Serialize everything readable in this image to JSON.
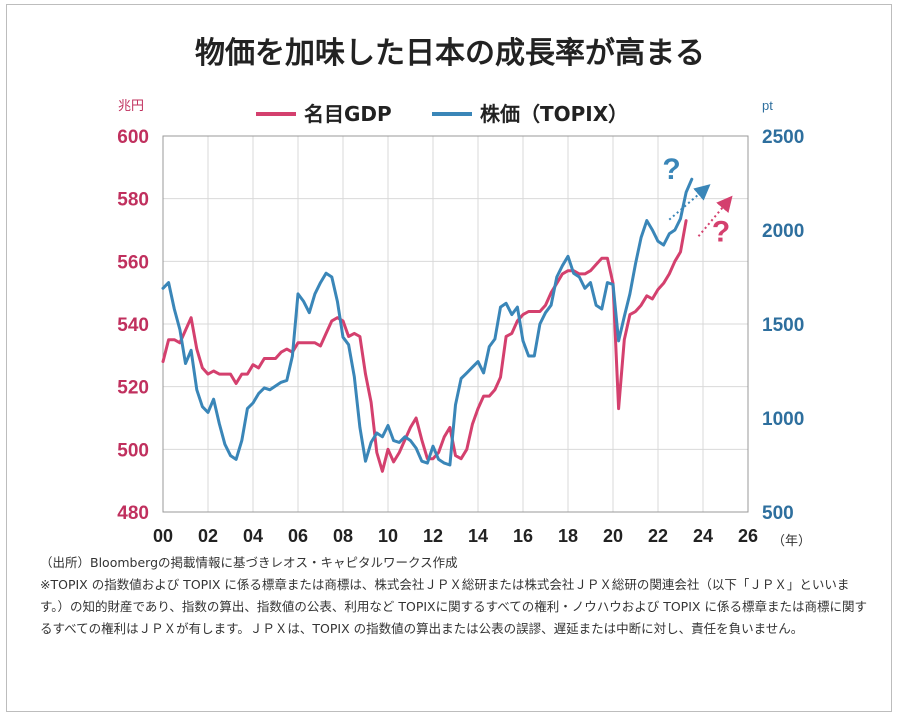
{
  "title": "物価を加味した日本の成長率が高まる",
  "footer": {
    "source": "（出所）Bloombergの掲載情報に基づきレオス・キャピタルワークス作成",
    "note": "※TOPIX の指数値および TOPIX に係る標章または商標は、株式会社ＪＰＸ総研または株式会社ＪＰＸ総研の関連会社（以下「ＪＰＸ」といいます。）の知的財産であり、指数の算出、指数値の公表、利用など TOPIXに関するすべての権利・ノウハウおよび TOPIX に係る標章または商標に関するすべての権利はＪＰＸが有します。ＪＰＸは、TOPIX の指数値の算出または公表の誤謬、遅延または中断に対し、責任を負いません。"
  },
  "chart_data": {
    "type": "line",
    "title": "物価を加味した日本の成長率が高まる",
    "xlabel": "（年）",
    "ylabel_left": "兆円",
    "ylabel_right": "pt",
    "x_tick_labels": [
      "00",
      "02",
      "04",
      "06",
      "08",
      "10",
      "12",
      "14",
      "16",
      "18",
      "20",
      "22",
      "24",
      "26"
    ],
    "xlim": [
      2000,
      2026
    ],
    "ylim_left": [
      480,
      600
    ],
    "yticks_left": [
      480,
      500,
      520,
      540,
      560,
      580,
      600
    ],
    "ylim_right": [
      500,
      2500
    ],
    "yticks_right": [
      500,
      1000,
      1500,
      2000,
      2500
    ],
    "legend": [
      "名目GDP",
      "株価（TOPIX）"
    ],
    "legend_position": "top-center",
    "colors": {
      "gdp": "#d4406e",
      "topix": "#3a86b8",
      "axis_left": "#c0305e",
      "axis_right": "#2e6f9e",
      "grid": "#d9d9d9"
    },
    "annotations": [
      {
        "text": "?",
        "color": "#3a86b8",
        "at": [
          2022.6,
          2270
        ]
      },
      {
        "text": "?",
        "color": "#d4406e",
        "at": [
          2024.8,
          1940
        ]
      }
    ],
    "arrows": [
      {
        "series": "topix",
        "from": [
          2022.5,
          2055
        ],
        "to": [
          2024.2,
          2230
        ]
      },
      {
        "series": "gdp",
        "from": [
          2023.8,
          568
        ],
        "to": [
          2025.2,
          580
        ]
      }
    ],
    "series": [
      {
        "name": "名目GDP",
        "axis": "left",
        "x": [
          2000.0,
          2000.25,
          2000.5,
          2000.75,
          2001.0,
          2001.25,
          2001.5,
          2001.75,
          2002.0,
          2002.25,
          2002.5,
          2002.75,
          2003.0,
          2003.25,
          2003.5,
          2003.75,
          2004.0,
          2004.25,
          2004.5,
          2004.75,
          2005.0,
          2005.25,
          2005.5,
          2005.75,
          2006.0,
          2006.25,
          2006.5,
          2006.75,
          2007.0,
          2007.25,
          2007.5,
          2007.75,
          2008.0,
          2008.25,
          2008.5,
          2008.75,
          2009.0,
          2009.25,
          2009.5,
          2009.75,
          2010.0,
          2010.25,
          2010.5,
          2010.75,
          2011.0,
          2011.25,
          2011.5,
          2011.75,
          2012.0,
          2012.25,
          2012.5,
          2012.75,
          2013.0,
          2013.25,
          2013.5,
          2013.75,
          2014.0,
          2014.25,
          2014.5,
          2014.75,
          2015.0,
          2015.25,
          2015.5,
          2015.75,
          2016.0,
          2016.25,
          2016.5,
          2016.75,
          2017.0,
          2017.25,
          2017.5,
          2017.75,
          2018.0,
          2018.25,
          2018.5,
          2018.75,
          2019.0,
          2019.25,
          2019.5,
          2019.75,
          2020.0,
          2020.25,
          2020.5,
          2020.75,
          2021.0,
          2021.25,
          2021.5,
          2021.75,
          2022.0,
          2022.25,
          2022.5,
          2022.75,
          2023.0,
          2023.25
        ],
        "values": [
          528,
          535,
          535,
          534,
          538,
          542,
          532,
          526,
          524,
          525,
          524,
          524,
          524,
          521,
          524,
          524,
          527,
          526,
          529,
          529,
          529,
          531,
          532,
          531,
          534,
          534,
          534,
          534,
          533,
          537,
          541,
          542,
          541,
          536,
          537,
          536,
          524,
          515,
          499,
          493,
          500,
          496,
          499,
          503,
          507,
          510,
          503,
          497,
          497,
          499,
          504,
          507,
          498,
          497,
          500,
          508,
          513,
          517,
          517,
          519,
          523,
          536,
          537,
          541,
          543,
          544,
          544,
          544,
          546,
          550,
          553,
          556,
          557,
          557,
          556,
          556,
          557,
          559,
          561,
          561,
          553,
          513,
          535,
          543,
          544,
          546,
          549,
          548,
          551,
          553,
          556,
          560,
          563,
          573
        ]
      },
      {
        "name": "株価（TOPIX）",
        "axis": "right",
        "x": [
          2000.0,
          2000.25,
          2000.5,
          2000.75,
          2001.0,
          2001.25,
          2001.5,
          2001.75,
          2002.0,
          2002.25,
          2002.5,
          2002.75,
          2003.0,
          2003.25,
          2003.5,
          2003.75,
          2004.0,
          2004.25,
          2004.5,
          2004.75,
          2005.0,
          2005.25,
          2005.5,
          2005.75,
          2006.0,
          2006.25,
          2006.5,
          2006.75,
          2007.0,
          2007.25,
          2007.5,
          2007.75,
          2008.0,
          2008.25,
          2008.5,
          2008.75,
          2009.0,
          2009.25,
          2009.5,
          2009.75,
          2010.0,
          2010.25,
          2010.5,
          2010.75,
          2011.0,
          2011.25,
          2011.5,
          2011.75,
          2012.0,
          2012.25,
          2012.5,
          2012.75,
          2013.0,
          2013.25,
          2013.5,
          2013.75,
          2014.0,
          2014.25,
          2014.5,
          2014.75,
          2015.0,
          2015.25,
          2015.5,
          2015.75,
          2016.0,
          2016.25,
          2016.5,
          2016.75,
          2017.0,
          2017.25,
          2017.5,
          2017.75,
          2018.0,
          2018.25,
          2018.5,
          2018.75,
          2019.0,
          2019.25,
          2019.5,
          2019.75,
          2020.0,
          2020.25,
          2020.5,
          2020.75,
          2021.0,
          2021.25,
          2021.5,
          2021.75,
          2022.0,
          2022.25,
          2022.5,
          2022.75,
          2023.0,
          2023.25,
          2023.5
        ],
        "values": [
          1690,
          1720,
          1580,
          1470,
          1290,
          1360,
          1150,
          1060,
          1030,
          1100,
          970,
          860,
          800,
          780,
          880,
          1050,
          1080,
          1130,
          1160,
          1150,
          1170,
          1190,
          1200,
          1330,
          1660,
          1620,
          1560,
          1660,
          1720,
          1770,
          1750,
          1620,
          1430,
          1390,
          1220,
          950,
          770,
          870,
          920,
          900,
          960,
          880,
          870,
          900,
          880,
          840,
          770,
          760,
          850,
          780,
          760,
          750,
          1070,
          1210,
          1240,
          1270,
          1300,
          1240,
          1380,
          1420,
          1590,
          1610,
          1550,
          1590,
          1410,
          1330,
          1330,
          1500,
          1560,
          1600,
          1750,
          1810,
          1860,
          1770,
          1750,
          1690,
          1720,
          1600,
          1580,
          1720,
          1710,
          1410,
          1540,
          1660,
          1820,
          1960,
          2050,
          2000,
          1940,
          1920,
          1980,
          2000,
          2060,
          2200,
          2270
        ]
      }
    ]
  }
}
